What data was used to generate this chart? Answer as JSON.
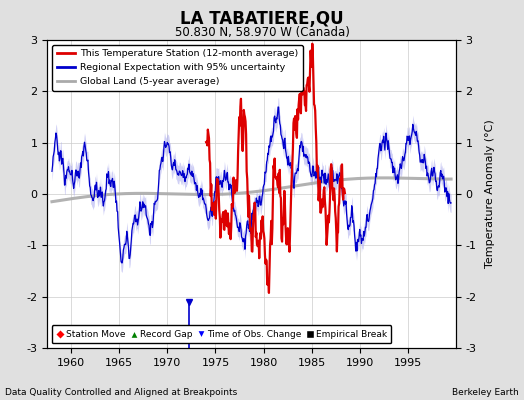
{
  "title": "LA TABATIERE,QU",
  "subtitle": "50.830 N, 58.970 W (Canada)",
  "ylabel": "Temperature Anomaly (°C)",
  "footer_left": "Data Quality Controlled and Aligned at Breakpoints",
  "footer_right": "Berkeley Earth",
  "xlim": [
    1957.5,
    2000
  ],
  "ylim": [
    -3,
    3
  ],
  "yticks": [
    -3,
    -2,
    -1,
    0,
    1,
    2,
    3
  ],
  "xticks": [
    1960,
    1965,
    1970,
    1975,
    1980,
    1985,
    1990,
    1995
  ],
  "bg_color": "#e0e0e0",
  "plot_bg_color": "#ffffff",
  "line_color_station": "#dd0000",
  "line_color_regional": "#0000cc",
  "line_color_global": "#aaaaaa",
  "shade_color_regional": "#aaaaee",
  "obs_change_year": 1972.3,
  "station_start": 1974.0,
  "station_end": 1988.5,
  "seed_regional": 10,
  "seed_station": 77
}
